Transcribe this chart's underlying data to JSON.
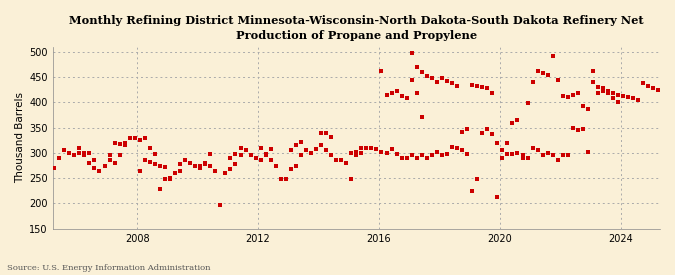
{
  "title": "Monthly Refining District Minnesota-Wisconsin-North Dakota-South Dakota Refinery Net\nProduction of Propane and Propylene",
  "ylabel": "Thousand Barrels",
  "source": "Source: U.S. Energy Information Administration",
  "bg_color": "#FAF0D7",
  "marker_color": "#CC0000",
  "ylim": [
    150,
    510
  ],
  "yticks": [
    150,
    200,
    250,
    300,
    350,
    400,
    450,
    500
  ],
  "xlim_start": 2005.2,
  "xlim_end": 2025.3,
  "xticks": [
    2008,
    2012,
    2016,
    2020,
    2024
  ],
  "data": [
    [
      2005.083,
      265
    ],
    [
      2005.25,
      270
    ],
    [
      2005.417,
      290
    ],
    [
      2005.583,
      305
    ],
    [
      2005.75,
      300
    ],
    [
      2005.917,
      295
    ],
    [
      2006.083,
      310
    ],
    [
      2006.25,
      295
    ],
    [
      2006.417,
      280
    ],
    [
      2006.583,
      270
    ],
    [
      2006.75,
      265
    ],
    [
      2006.917,
      275
    ],
    [
      2007.083,
      285
    ],
    [
      2007.25,
      280
    ],
    [
      2007.417,
      295
    ],
    [
      2007.583,
      315
    ],
    [
      2007.75,
      330
    ],
    [
      2007.917,
      330
    ],
    [
      2008.083,
      325
    ],
    [
      2008.25,
      330
    ],
    [
      2008.417,
      310
    ],
    [
      2008.583,
      298
    ],
    [
      2008.75,
      228
    ],
    [
      2008.917,
      248
    ],
    [
      2009.083,
      248
    ],
    [
      2009.25,
      260
    ],
    [
      2009.417,
      278
    ],
    [
      2009.583,
      285
    ],
    [
      2009.75,
      280
    ],
    [
      2009.917,
      275
    ],
    [
      2010.083,
      275
    ],
    [
      2010.25,
      280
    ],
    [
      2010.417,
      275
    ],
    [
      2010.583,
      265
    ],
    [
      2010.75,
      197
    ],
    [
      2010.917,
      260
    ],
    [
      2011.083,
      268
    ],
    [
      2011.25,
      278
    ],
    [
      2011.417,
      295
    ],
    [
      2011.583,
      305
    ],
    [
      2011.75,
      295
    ],
    [
      2011.917,
      290
    ],
    [
      2012.083,
      285
    ],
    [
      2012.25,
      295
    ],
    [
      2012.417,
      285
    ],
    [
      2012.583,
      275
    ],
    [
      2012.75,
      248
    ],
    [
      2012.917,
      248
    ],
    [
      2013.083,
      268
    ],
    [
      2013.25,
      275
    ],
    [
      2013.417,
      295
    ],
    [
      2013.583,
      305
    ],
    [
      2013.75,
      300
    ],
    [
      2013.917,
      308
    ],
    [
      2014.083,
      315
    ],
    [
      2014.25,
      305
    ],
    [
      2014.417,
      295
    ],
    [
      2014.583,
      285
    ],
    [
      2014.75,
      285
    ],
    [
      2014.917,
      280
    ],
    [
      2015.083,
      248
    ],
    [
      2015.25,
      295
    ],
    [
      2015.417,
      310
    ],
    [
      2015.583,
      310
    ],
    [
      2015.75,
      310
    ],
    [
      2015.917,
      308
    ],
    [
      2016.083,
      302
    ],
    [
      2016.25,
      300
    ],
    [
      2016.417,
      308
    ],
    [
      2016.583,
      298
    ],
    [
      2016.75,
      290
    ],
    [
      2016.917,
      290
    ],
    [
      2017.083,
      295
    ],
    [
      2017.25,
      290
    ],
    [
      2017.417,
      295
    ],
    [
      2017.583,
      290
    ],
    [
      2017.75,
      295
    ],
    [
      2017.917,
      302
    ],
    [
      2018.083,
      295
    ],
    [
      2018.25,
      298
    ],
    [
      2018.417,
      312
    ],
    [
      2018.583,
      310
    ],
    [
      2018.75,
      305
    ],
    [
      2018.917,
      298
    ],
    [
      2019.083,
      225
    ],
    [
      2019.25,
      248
    ],
    [
      2019.417,
      340
    ],
    [
      2019.583,
      348
    ],
    [
      2019.75,
      338
    ],
    [
      2019.917,
      320
    ],
    [
      2020.083,
      305
    ],
    [
      2020.25,
      298
    ],
    [
      2020.417,
      298
    ],
    [
      2020.583,
      300
    ],
    [
      2020.75,
      295
    ],
    [
      2020.917,
      290
    ],
    [
      2021.083,
      310
    ],
    [
      2021.25,
      305
    ],
    [
      2021.417,
      295
    ],
    [
      2021.583,
      300
    ],
    [
      2021.75,
      295
    ],
    [
      2021.917,
      285
    ],
    [
      2022.083,
      295
    ],
    [
      2022.25,
      295
    ],
    [
      2022.417,
      350
    ],
    [
      2022.583,
      345
    ],
    [
      2022.75,
      348
    ],
    [
      2022.917,
      302
    ],
    [
      2023.083,
      462
    ],
    [
      2023.25,
      418
    ],
    [
      2023.417,
      422
    ],
    [
      2023.583,
      418
    ],
    [
      2023.75,
      408
    ],
    [
      2023.917,
      400
    ],
    [
      2006.083,
      300
    ],
    [
      2006.25,
      300
    ],
    [
      2006.417,
      300
    ],
    [
      2006.583,
      285
    ],
    [
      2007.083,
      295
    ],
    [
      2007.25,
      320
    ],
    [
      2007.417,
      318
    ],
    [
      2007.583,
      320
    ],
    [
      2008.083,
      265
    ],
    [
      2008.25,
      285
    ],
    [
      2008.417,
      282
    ],
    [
      2008.583,
      278
    ],
    [
      2008.75,
      275
    ],
    [
      2008.917,
      272
    ],
    [
      2009.083,
      250
    ],
    [
      2009.25,
      260
    ],
    [
      2009.417,
      265
    ],
    [
      2010.083,
      270
    ],
    [
      2010.25,
      278
    ],
    [
      2010.417,
      298
    ],
    [
      2011.083,
      290
    ],
    [
      2011.25,
      298
    ],
    [
      2011.417,
      310
    ],
    [
      2012.083,
      310
    ],
    [
      2012.25,
      298
    ],
    [
      2012.417,
      308
    ],
    [
      2013.083,
      305
    ],
    [
      2013.25,
      315
    ],
    [
      2013.417,
      322
    ],
    [
      2014.083,
      340
    ],
    [
      2014.25,
      340
    ],
    [
      2014.417,
      332
    ],
    [
      2015.083,
      300
    ],
    [
      2015.25,
      302
    ],
    [
      2015.417,
      300
    ],
    [
      2016.083,
      462
    ],
    [
      2016.25,
      415
    ],
    [
      2016.417,
      418
    ],
    [
      2016.583,
      422
    ],
    [
      2016.75,
      412
    ],
    [
      2016.917,
      408
    ],
    [
      2017.083,
      498
    ],
    [
      2017.25,
      470
    ],
    [
      2017.417,
      460
    ],
    [
      2017.583,
      452
    ],
    [
      2017.75,
      448
    ],
    [
      2017.917,
      440
    ],
    [
      2017.083,
      445
    ],
    [
      2017.25,
      418
    ],
    [
      2017.417,
      372
    ],
    [
      2018.083,
      448
    ],
    [
      2018.25,
      442
    ],
    [
      2018.417,
      438
    ],
    [
      2018.583,
      432
    ],
    [
      2018.75,
      342
    ],
    [
      2018.917,
      348
    ],
    [
      2019.083,
      435
    ],
    [
      2019.25,
      432
    ],
    [
      2019.417,
      430
    ],
    [
      2019.583,
      428
    ],
    [
      2019.75,
      418
    ],
    [
      2019.917,
      212
    ],
    [
      2020.083,
      290
    ],
    [
      2020.25,
      320
    ],
    [
      2020.417,
      360
    ],
    [
      2020.583,
      365
    ],
    [
      2020.75,
      290
    ],
    [
      2020.917,
      398
    ],
    [
      2021.083,
      440
    ],
    [
      2021.25,
      462
    ],
    [
      2021.417,
      458
    ],
    [
      2021.583,
      455
    ],
    [
      2021.75,
      492
    ],
    [
      2021.917,
      445
    ],
    [
      2022.083,
      412
    ],
    [
      2022.25,
      410
    ],
    [
      2022.417,
      415
    ],
    [
      2022.583,
      418
    ],
    [
      2022.75,
      392
    ],
    [
      2022.917,
      388
    ],
    [
      2023.083,
      440
    ],
    [
      2023.25,
      430
    ],
    [
      2023.417,
      428
    ],
    [
      2023.583,
      422
    ],
    [
      2023.75,
      418
    ],
    [
      2023.917,
      415
    ],
    [
      2024.083,
      412
    ],
    [
      2024.25,
      410
    ],
    [
      2024.417,
      408
    ],
    [
      2024.583,
      405
    ],
    [
      2024.75,
      438
    ],
    [
      2024.917,
      432
    ],
    [
      2025.083,
      428
    ],
    [
      2025.25,
      425
    ]
  ]
}
